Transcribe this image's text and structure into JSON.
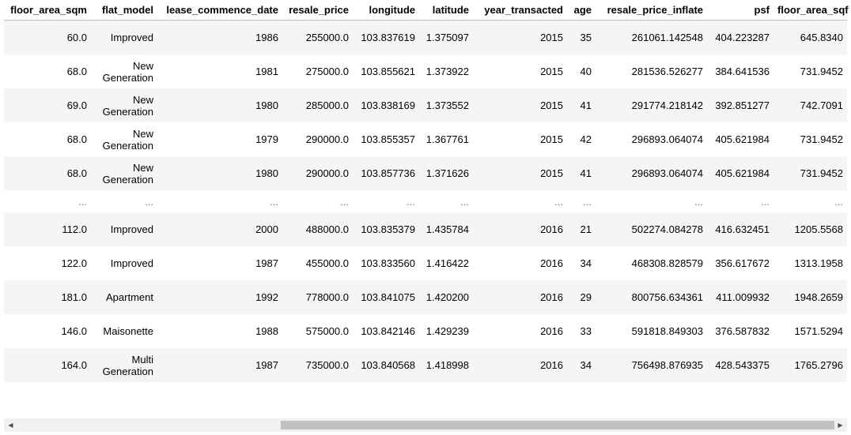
{
  "columns": [
    "floor_area_sqm",
    "flat_model",
    "lease_commence_date",
    "resale_price",
    "longitude",
    "latitude",
    "year_transacted",
    "age",
    "resale_price_inflate",
    "psf",
    "floor_area_sqf"
  ],
  "rows": [
    [
      "60.0",
      "Improved",
      "1986",
      "255000.0",
      "103.837619",
      "1.375097",
      "2015",
      "35",
      "261061.142548",
      "404.223287",
      "645.8340"
    ],
    [
      "68.0",
      "New Generation",
      "1981",
      "275000.0",
      "103.855621",
      "1.373922",
      "2015",
      "40",
      "281536.526277",
      "384.641536",
      "731.9452"
    ],
    [
      "69.0",
      "New Generation",
      "1980",
      "285000.0",
      "103.838169",
      "1.373552",
      "2015",
      "41",
      "291774.218142",
      "392.851277",
      "742.7091"
    ],
    [
      "68.0",
      "New Generation",
      "1979",
      "290000.0",
      "103.855357",
      "1.367761",
      "2015",
      "42",
      "296893.064074",
      "405.621984",
      "731.9452"
    ],
    [
      "68.0",
      "New Generation",
      "1980",
      "290000.0",
      "103.857736",
      "1.371626",
      "2015",
      "41",
      "296893.064074",
      "405.621984",
      "731.9452"
    ],
    [
      "...",
      "...",
      "...",
      "...",
      "...",
      "...",
      "...",
      "...",
      "...",
      "...",
      "..."
    ],
    [
      "112.0",
      "Improved",
      "2000",
      "488000.0",
      "103.835379",
      "1.435784",
      "2016",
      "21",
      "502274.084278",
      "416.632451",
      "1205.5568"
    ],
    [
      "122.0",
      "Improved",
      "1987",
      "455000.0",
      "103.833560",
      "1.416422",
      "2016",
      "34",
      "468308.828579",
      "356.617672",
      "1313.1958"
    ],
    [
      "181.0",
      "Apartment",
      "1992",
      "778000.0",
      "103.841075",
      "1.420200",
      "2016",
      "29",
      "800756.634361",
      "411.009932",
      "1948.2659"
    ],
    [
      "146.0",
      "Maisonette",
      "1988",
      "575000.0",
      "103.842146",
      "1.429239",
      "2016",
      "33",
      "591818.849303",
      "376.587832",
      "1571.5294"
    ],
    [
      "164.0",
      "Multi Generation",
      "1987",
      "735000.0",
      "103.840568",
      "1.418998",
      "2016",
      "34",
      "756498.876935",
      "428.543375",
      "1765.2796"
    ]
  ],
  "scrollbar": {
    "left_icon": "triangle-left-icon",
    "right_icon": "triangle-right-icon",
    "left_glyph": "◀",
    "right_glyph": "▶"
  }
}
